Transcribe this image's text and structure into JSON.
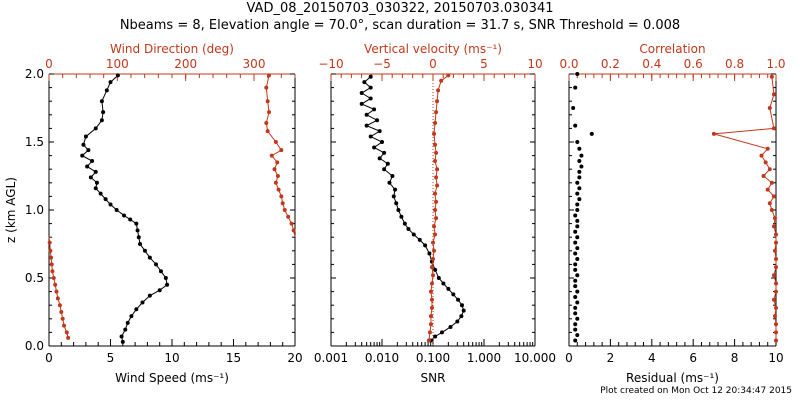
{
  "titles": {
    "line1": "VAD_08_20150703_030322, 20150703.030341",
    "line2": "Nbeams = 8, Elevation angle = 70.0°, scan duration = 31.7 s, SNR Threshold = 0.008"
  },
  "footer": "Plot created on Mon Oct 12 20:34:47 2015",
  "colors": {
    "primary": "#000000",
    "secondary": "#c0391b"
  },
  "chart_data": [
    {
      "type": "line",
      "ylabel": "z (km AGL)",
      "ylim": [
        0,
        2
      ],
      "yticks": [
        "0.0",
        "0.5",
        "1.0",
        "1.5",
        "2.0"
      ],
      "x_bottom": {
        "label": "Wind Speed (ms⁻¹)",
        "lim": [
          0,
          20
        ],
        "ticks": [
          "0",
          "5",
          "10",
          "15",
          "20"
        ]
      },
      "x_top": {
        "label": "Wind Direction (deg)",
        "lim": [
          0,
          360
        ],
        "ticks": [
          "0",
          "100",
          "200",
          "300"
        ]
      },
      "series": [
        {
          "axis": "bottom",
          "color": "#000000",
          "style": "line-markers",
          "points": [
            [
              6.0,
              0.03
            ],
            [
              5.9,
              0.07
            ],
            [
              6.2,
              0.12
            ],
            [
              6.4,
              0.17
            ],
            [
              6.7,
              0.22
            ],
            [
              7.1,
              0.27
            ],
            [
              7.6,
              0.32
            ],
            [
              8.2,
              0.37
            ],
            [
              9.0,
              0.41
            ],
            [
              9.6,
              0.45
            ],
            [
              9.5,
              0.5
            ],
            [
              9.1,
              0.55
            ],
            [
              8.7,
              0.6
            ],
            [
              8.2,
              0.65
            ],
            [
              7.8,
              0.7
            ],
            [
              7.4,
              0.75
            ],
            [
              7.3,
              0.8
            ],
            [
              7.2,
              0.85
            ],
            [
              7.1,
              0.9
            ],
            [
              6.6,
              0.93
            ],
            [
              6.1,
              0.96
            ],
            [
              5.5,
              1.0
            ],
            [
              5.0,
              1.04
            ],
            [
              4.6,
              1.08
            ],
            [
              4.2,
              1.12
            ],
            [
              3.8,
              1.16
            ],
            [
              3.9,
              1.2
            ],
            [
              3.4,
              1.24
            ],
            [
              3.8,
              1.28
            ],
            [
              3.1,
              1.32
            ],
            [
              3.5,
              1.36
            ],
            [
              2.7,
              1.4
            ],
            [
              3.2,
              1.44
            ],
            [
              2.8,
              1.48
            ],
            [
              3.0,
              1.54
            ],
            [
              3.8,
              1.6
            ],
            [
              4.3,
              1.66
            ],
            [
              4.4,
              1.72
            ],
            [
              4.3,
              1.8
            ],
            [
              4.7,
              1.88
            ],
            [
              5.0,
              1.94
            ],
            [
              5.6,
              1.99
            ]
          ]
        },
        {
          "axis": "top",
          "color": "#c0391b",
          "style": "line-markers",
          "points": [
            [
              28,
              0.06
            ],
            [
              26,
              0.1
            ],
            [
              22,
              0.15
            ],
            [
              20,
              0.2
            ],
            [
              18,
              0.25
            ],
            [
              16,
              0.3
            ],
            [
              13,
              0.35
            ],
            [
              11,
              0.4
            ],
            [
              9,
              0.45
            ],
            [
              7,
              0.5
            ],
            [
              5,
              0.55
            ],
            [
              4,
              0.6
            ],
            [
              3,
              0.65
            ],
            [
              2,
              0.7
            ],
            [
              1,
              0.76
            ],
            [
              358,
              0.85
            ],
            [
              355,
              0.9
            ],
            [
              350,
              0.95
            ],
            [
              345,
              1.0
            ],
            [
              342,
              1.05
            ],
            [
              340,
              1.1
            ],
            [
              336,
              1.15
            ],
            [
              332,
              1.2
            ],
            [
              335,
              1.25
            ],
            [
              330,
              1.3
            ],
            [
              334,
              1.35
            ],
            [
              326,
              1.4
            ],
            [
              340,
              1.44
            ],
            [
              332,
              1.5
            ],
            [
              320,
              1.58
            ],
            [
              318,
              1.64
            ],
            [
              322,
              1.72
            ],
            [
              320,
              1.8
            ],
            [
              318,
              1.9
            ],
            [
              322,
              1.99
            ]
          ]
        }
      ]
    },
    {
      "type": "line",
      "ylim": [
        0,
        2
      ],
      "x_bottom": {
        "label": "SNR",
        "scale": "log",
        "lim": [
          0.001,
          10
        ],
        "ticks": [
          "0.001",
          "0.010",
          "0.100",
          "1.000",
          "10.000"
        ]
      },
      "x_top": {
        "label": "Vertical velocity (ms⁻¹)",
        "lim": [
          -10,
          10
        ],
        "ticks": [
          "−10",
          "−5",
          "0",
          "5",
          "10"
        ]
      },
      "series": [
        {
          "axis": "bottom",
          "color": "#000000",
          "style": "line-markers",
          "points": [
            [
              0.09,
              0.04
            ],
            [
              0.11,
              0.07
            ],
            [
              0.15,
              0.1
            ],
            [
              0.22,
              0.14
            ],
            [
              0.3,
              0.18
            ],
            [
              0.36,
              0.22
            ],
            [
              0.4,
              0.26
            ],
            [
              0.37,
              0.3
            ],
            [
              0.31,
              0.34
            ],
            [
              0.25,
              0.38
            ],
            [
              0.2,
              0.42
            ],
            [
              0.16,
              0.46
            ],
            [
              0.13,
              0.5
            ],
            [
              0.11,
              0.56
            ],
            [
              0.095,
              0.62
            ],
            [
              0.085,
              0.68
            ],
            [
              0.07,
              0.74
            ],
            [
              0.055,
              0.78
            ],
            [
              0.042,
              0.82
            ],
            [
              0.033,
              0.86
            ],
            [
              0.028,
              0.9
            ],
            [
              0.024,
              0.95
            ],
            [
              0.021,
              1.0
            ],
            [
              0.019,
              1.05
            ],
            [
              0.017,
              1.1
            ],
            [
              0.018,
              1.15
            ],
            [
              0.014,
              1.2
            ],
            [
              0.016,
              1.25
            ],
            [
              0.011,
              1.3
            ],
            [
              0.013,
              1.34
            ],
            [
              0.009,
              1.38
            ],
            [
              0.011,
              1.42
            ],
            [
              0.007,
              1.46
            ],
            [
              0.01,
              1.5
            ],
            [
              0.006,
              1.54
            ],
            [
              0.009,
              1.58
            ],
            [
              0.005,
              1.62
            ],
            [
              0.008,
              1.66
            ],
            [
              0.005,
              1.7
            ],
            [
              0.007,
              1.74
            ],
            [
              0.004,
              1.78
            ],
            [
              0.006,
              1.82
            ],
            [
              0.004,
              1.86
            ],
            [
              0.006,
              1.9
            ],
            [
              0.0045,
              1.94
            ],
            [
              0.006,
              1.98
            ]
          ]
        },
        {
          "axis": "top",
          "color": "#c0391b",
          "style": "line-markers",
          "points": [
            [
              -0.4,
              0.04
            ],
            [
              -0.3,
              0.1
            ],
            [
              -0.2,
              0.16
            ],
            [
              -0.2,
              0.22
            ],
            [
              -0.1,
              0.28
            ],
            [
              -0.1,
              0.34
            ],
            [
              -0.2,
              0.4
            ],
            [
              -0.1,
              0.46
            ],
            [
              0.0,
              0.52
            ],
            [
              -0.1,
              0.58
            ],
            [
              0.0,
              0.64
            ],
            [
              0.1,
              0.7
            ],
            [
              0.0,
              0.76
            ],
            [
              0.2,
              0.82
            ],
            [
              0.1,
              0.88
            ],
            [
              0.3,
              0.94
            ],
            [
              0.2,
              1.0
            ],
            [
              0.3,
              1.06
            ],
            [
              0.2,
              1.12
            ],
            [
              0.4,
              1.18
            ],
            [
              0.3,
              1.24
            ],
            [
              0.4,
              1.3
            ],
            [
              0.2,
              1.36
            ],
            [
              0.3,
              1.42
            ],
            [
              0.2,
              1.48
            ],
            [
              0.1,
              1.56
            ],
            [
              0.2,
              1.64
            ],
            [
              0.3,
              1.72
            ],
            [
              0.4,
              1.8
            ],
            [
              0.5,
              1.88
            ],
            [
              0.8,
              1.95
            ],
            [
              1.5,
              1.99
            ]
          ]
        }
      ]
    },
    {
      "type": "scatter",
      "ylim": [
        0,
        2
      ],
      "x_bottom": {
        "label": "Residual (ms⁻¹)",
        "lim": [
          0,
          10
        ],
        "ticks": [
          "0",
          "2",
          "4",
          "6",
          "8",
          "10"
        ]
      },
      "x_top": {
        "label": "Correlation",
        "lim": [
          0,
          1
        ],
        "ticks": [
          "0.0",
          "0.2",
          "0.4",
          "0.6",
          "0.8",
          "1.0"
        ]
      },
      "series": [
        {
          "axis": "bottom",
          "color": "#000000",
          "style": "markers",
          "points": [
            [
              0.3,
              0.04
            ],
            [
              0.4,
              0.08
            ],
            [
              0.3,
              0.12
            ],
            [
              0.3,
              0.16
            ],
            [
              0.4,
              0.2
            ],
            [
              0.3,
              0.24
            ],
            [
              0.3,
              0.28
            ],
            [
              0.4,
              0.32
            ],
            [
              0.3,
              0.36
            ],
            [
              0.4,
              0.4
            ],
            [
              0.3,
              0.44
            ],
            [
              0.3,
              0.48
            ],
            [
              0.4,
              0.52
            ],
            [
              0.3,
              0.56
            ],
            [
              0.3,
              0.6
            ],
            [
              0.4,
              0.64
            ],
            [
              0.3,
              0.68
            ],
            [
              0.4,
              0.72
            ],
            [
              0.3,
              0.76
            ],
            [
              0.4,
              0.8
            ],
            [
              0.3,
              0.84
            ],
            [
              0.4,
              0.88
            ],
            [
              0.4,
              0.92
            ],
            [
              0.3,
              0.96
            ],
            [
              0.4,
              1.0
            ],
            [
              0.4,
              1.04
            ],
            [
              0.5,
              1.08
            ],
            [
              0.4,
              1.12
            ],
            [
              0.5,
              1.16
            ],
            [
              0.4,
              1.2
            ],
            [
              0.5,
              1.24
            ],
            [
              0.5,
              1.28
            ],
            [
              0.6,
              1.32
            ],
            [
              0.5,
              1.36
            ],
            [
              0.6,
              1.4
            ],
            [
              0.5,
              1.45
            ],
            [
              0.4,
              1.5
            ],
            [
              1.1,
              1.56
            ],
            [
              0.3,
              1.62
            ],
            [
              0.2,
              1.75
            ],
            [
              0.3,
              1.9
            ],
            [
              0.4,
              2.0
            ]
          ]
        },
        {
          "axis": "top",
          "color": "#c0391b",
          "style": "line-markers",
          "points": [
            [
              1.0,
              0.04
            ],
            [
              1.0,
              0.1
            ],
            [
              1.0,
              0.16
            ],
            [
              0.995,
              0.22
            ],
            [
              1.0,
              0.28
            ],
            [
              0.99,
              0.34
            ],
            [
              1.0,
              0.4
            ],
            [
              1.0,
              0.46
            ],
            [
              0.99,
              0.52
            ],
            [
              1.0,
              0.58
            ],
            [
              1.0,
              0.64
            ],
            [
              0.995,
              0.7
            ],
            [
              1.0,
              0.76
            ],
            [
              1.0,
              0.82
            ],
            [
              0.99,
              0.88
            ],
            [
              0.995,
              0.94
            ],
            [
              0.98,
              1.0
            ],
            [
              0.97,
              1.05
            ],
            [
              0.99,
              1.1
            ],
            [
              0.96,
              1.15
            ],
            [
              0.98,
              1.2
            ],
            [
              0.94,
              1.25
            ],
            [
              0.97,
              1.3
            ],
            [
              0.95,
              1.35
            ],
            [
              0.93,
              1.4
            ],
            [
              0.96,
              1.45
            ],
            [
              0.7,
              1.56
            ],
            [
              0.99,
              1.6
            ],
            [
              0.97,
              1.75
            ],
            [
              0.99,
              1.85
            ],
            [
              0.98,
              1.98
            ]
          ]
        }
      ]
    }
  ]
}
